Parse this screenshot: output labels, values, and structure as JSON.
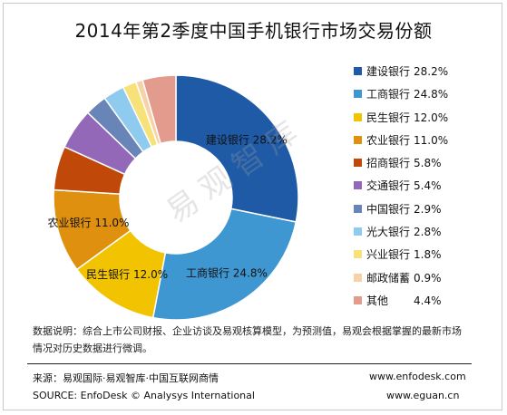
{
  "title": "2014年第2季度中国手机银行市场交易份额",
  "watermark": "易观智库",
  "note": "数据说明：综合上市公司财报、企业访谈及易观核算模型，为预测值，易观会根据掌握的最新市场情况对历史数据进行微调。",
  "footer": {
    "source_cn": "来源：易观国际·易观智库·中国互联网商情",
    "source_en": "SOURCE: EnfoDesk © Analysys International",
    "url1": "www.enfodesk.com",
    "url2": "www.eguan.cn"
  },
  "chart_data": {
    "type": "pie",
    "donut": true,
    "title": "2014年第2季度中国手机银行市场交易份额",
    "legend_position": "right",
    "slices": [
      {
        "name": "建设银行",
        "value": 28.2,
        "label": "28.2%",
        "color": "#1f5aa6"
      },
      {
        "name": "工商银行",
        "value": 24.8,
        "label": "24.8%",
        "color": "#3f97d1"
      },
      {
        "name": "民生银行",
        "value": 12.0,
        "label": "12.0%",
        "color": "#f2c300"
      },
      {
        "name": "农业银行",
        "value": 11.0,
        "label": "11.0%",
        "color": "#e0900f"
      },
      {
        "name": "招商银行",
        "value": 5.8,
        "label": "5.8%",
        "color": "#c0490a"
      },
      {
        "name": "交通银行",
        "value": 5.4,
        "label": "5.4%",
        "color": "#9468b8"
      },
      {
        "name": "中国银行",
        "value": 2.9,
        "label": "2.9%",
        "color": "#6985b8"
      },
      {
        "name": "光大银行",
        "value": 2.8,
        "label": "2.8%",
        "color": "#8ecbef"
      },
      {
        "name": "兴业银行",
        "value": 1.8,
        "label": "1.8%",
        "color": "#f7e27a"
      },
      {
        "name": "邮政储蓄",
        "value": 0.9,
        "label": "0.9%",
        "color": "#f7d2a8"
      },
      {
        "name": "其他",
        "value": 4.4,
        "label": "4.4%",
        "color": "#e39b8e"
      }
    ],
    "slice_labels": [
      {
        "name": "建设银行",
        "label": "28.2%"
      },
      {
        "name": "工商银行",
        "label": "24.8%"
      },
      {
        "name": "民生银行",
        "label": "12.0%"
      },
      {
        "name": "农业银行",
        "label": "11.0%"
      }
    ]
  }
}
